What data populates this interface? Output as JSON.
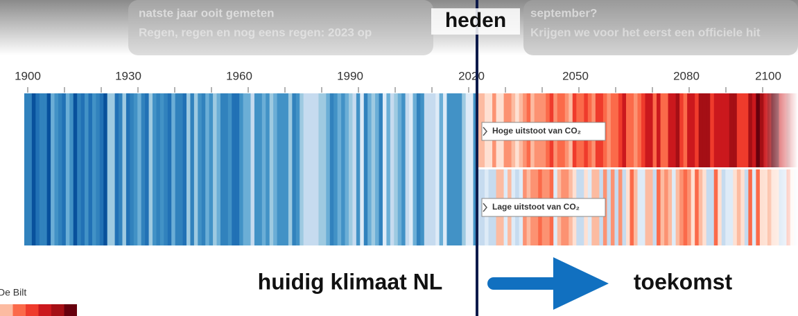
{
  "header": {
    "background_texts": [
      "natste jaar ooit gemeten",
      "Regen, regen en nog eens regen: 2023 op",
      "september?",
      "Krijgen we voor het eerst een officiele hit"
    ]
  },
  "axis": {
    "years": [
      1900,
      1930,
      1960,
      1990,
      2020,
      2050,
      2080,
      2100
    ]
  },
  "marker": {
    "label": "heden"
  },
  "scenarios": [
    {
      "label": "Hoge uitstoot van CO₂"
    },
    {
      "label": "Lage uitstoot van CO₂"
    }
  ],
  "footer": {
    "left": "huidig klimaat NL",
    "right": "toekomst"
  },
  "legend": {
    "label": "De Bilt"
  }
}
